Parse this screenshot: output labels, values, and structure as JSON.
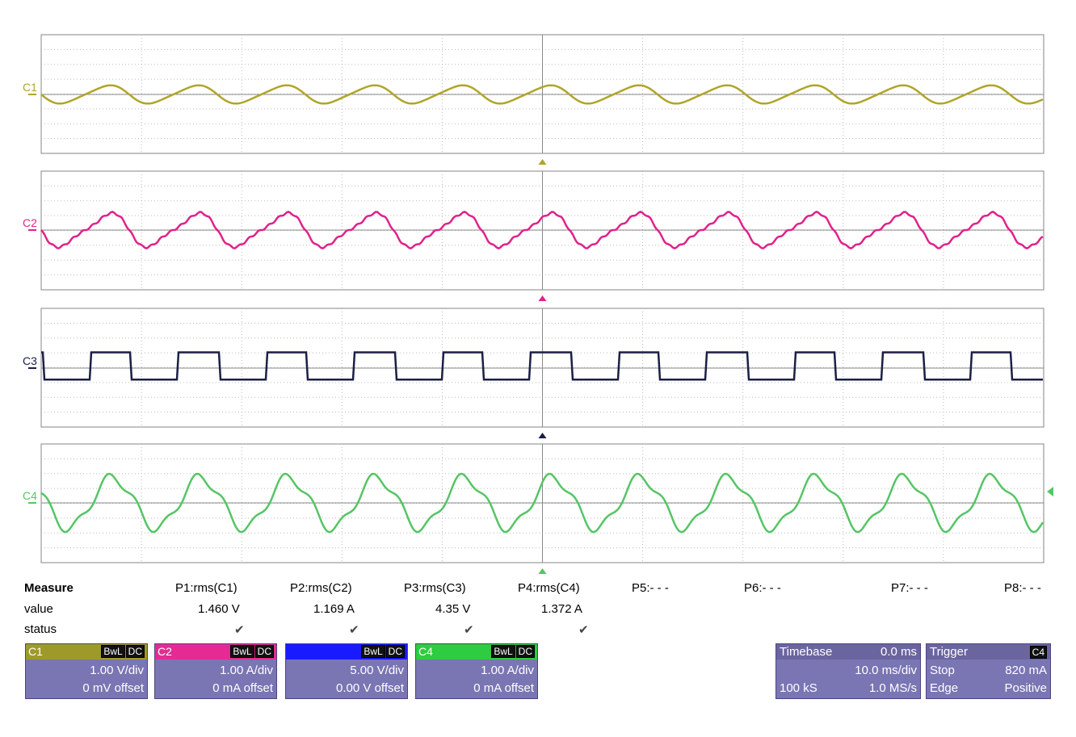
{
  "channels": [
    {
      "label": "C1",
      "color": "#b0a52a",
      "scale": "1.00 V/div",
      "offset": "0 mV offset",
      "bwl": "BwL",
      "cpl": "DC"
    },
    {
      "label": "C2",
      "color": "#e0228c",
      "scale": "1.00 A/div",
      "offset": "0 mA offset",
      "bwl": "BwL",
      "cpl": "DC"
    },
    {
      "label": "C3",
      "color": "#1a1f45",
      "scale": "5.00 V/div",
      "offset": "0.00 V offset",
      "bwl": "BwL",
      "cpl": "DC"
    },
    {
      "label": "C4",
      "color": "#55c565",
      "scale": "1.00 A/div",
      "offset": "0 mA offset",
      "bwl": "BwL",
      "cpl": "DC"
    }
  ],
  "channel_header_colors": [
    "#9e9a2a",
    "#e52b93",
    "#1a1aff",
    "#2ecc40"
  ],
  "measure": {
    "title": "Measure",
    "value_label": "value",
    "status_label": "status",
    "params": [
      {
        "name": "P1:rms(C1)",
        "value": "1.460 V",
        "status": "✔"
      },
      {
        "name": "P2:rms(C2)",
        "value": "1.169 A",
        "status": "✔"
      },
      {
        "name": "P3:rms(C3)",
        "value": "4.35 V",
        "status": "✔"
      },
      {
        "name": "P4:rms(C4)",
        "value": "1.372 A",
        "status": "✔"
      },
      {
        "name": "P5:- - -",
        "value": "",
        "status": ""
      },
      {
        "name": "P6:- - -",
        "value": "",
        "status": ""
      },
      {
        "name": "P7:- - -",
        "value": "",
        "status": ""
      },
      {
        "name": "P8:- - -",
        "value": "",
        "status": ""
      }
    ]
  },
  "timebase": {
    "title": "Timebase",
    "delay": "0.0 ms",
    "div": "10.0 ms/div",
    "samples": "100 kS",
    "rate": "1.0 MS/s"
  },
  "trigger": {
    "title": "Trigger",
    "source": "C4",
    "mode": "Stop",
    "level": "820 mA",
    "type": "Edge",
    "slope": "Positive"
  }
}
